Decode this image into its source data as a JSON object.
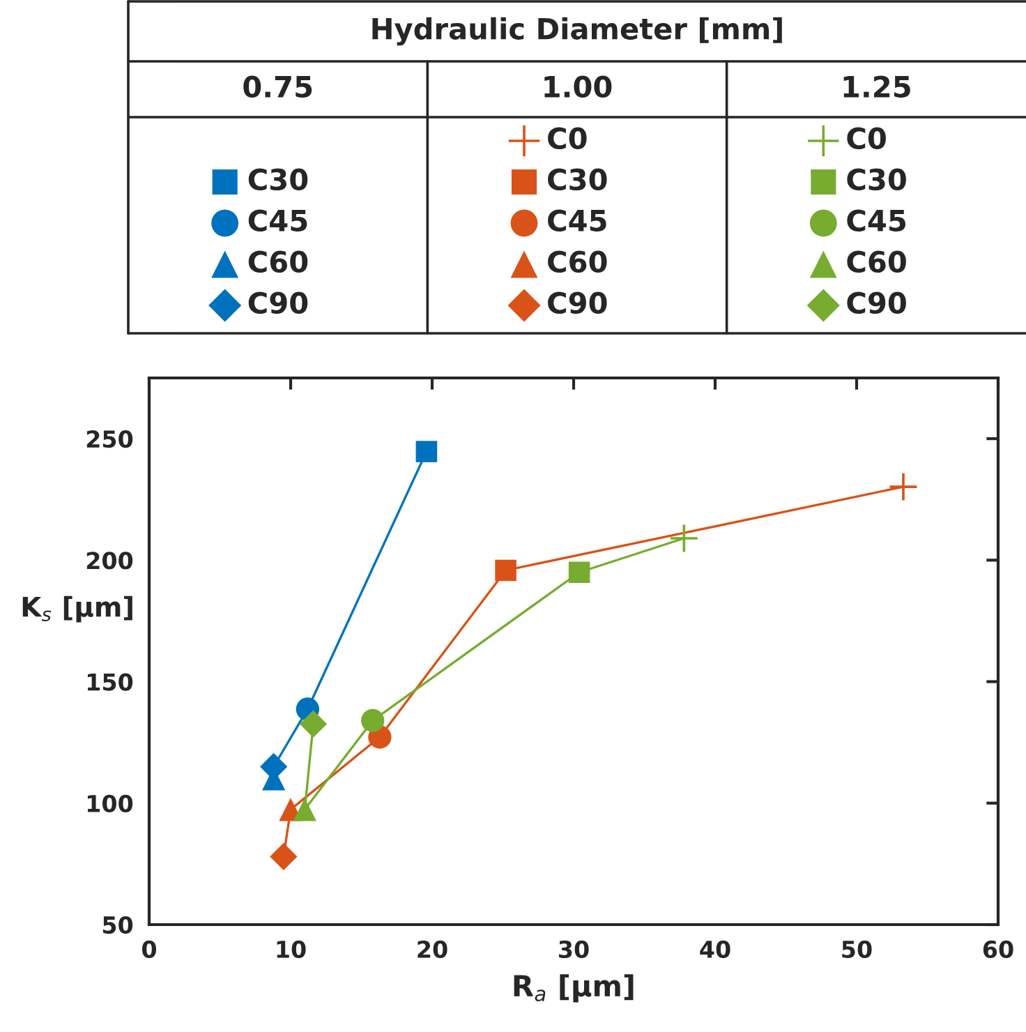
{
  "chart_data": {
    "type": "scatter",
    "legend_title": "Hydraulic Diameter [mm]",
    "legend": "top",
    "annotations": [
      "0.75",
      "1.00",
      "1.25"
    ],
    "xlabel": "R$_{a}$ [µm]",
    "ylabel": "K$_{s}$ [µm]",
    "xlim": [
      0,
      60
    ],
    "xticks": [
      0,
      10,
      20,
      30,
      40,
      50,
      60
    ],
    "ylim": [
      50,
      275
    ],
    "yticks": [
      50,
      100,
      150,
      200,
      250
    ],
    "grid": false,
    "series": [
      {
        "type": "line",
        "color": "#0072bd",
        "marker": "none",
        "x": [
          8.8,
          8.8,
          11.2,
          19.6
        ],
        "values": [
          110,
          115,
          138.7,
          244.7
        ]
      },
      {
        "type": "line",
        "color": "#d95319",
        "marker": "none",
        "x": [
          9.5,
          10.0,
          16.3,
          25.2,
          53.3
        ],
        "values": [
          78,
          97.4,
          127.2,
          195.8,
          230.2
        ]
      },
      {
        "type": "line",
        "color": "#77ac30",
        "marker": "none",
        "x": [
          11.6,
          11.0,
          15.8,
          30.4,
          37.8
        ],
        "values": [
          132.6,
          97.4,
          134,
          195,
          209
        ]
      },
      {
        "name": "C30",
        "color": "#0072bd",
        "marker": "square",
        "x": [
          19.6
        ],
        "values": [
          244.7
        ]
      },
      {
        "name": "C45",
        "color": "#0072bd",
        "marker": "circle",
        "x": [
          11.2
        ],
        "values": [
          138.7
        ]
      },
      {
        "name": "C60",
        "color": "#0072bd",
        "marker": "triangle",
        "x": [
          8.8
        ],
        "values": [
          110
        ]
      },
      {
        "name": "C90",
        "color": "#0072bd",
        "marker": "diamond",
        "x": [
          8.8
        ],
        "values": [
          115
        ]
      },
      {
        "name": "C0",
        "color": "#d95319",
        "marker": "cross",
        "x": [
          53.3
        ],
        "values": [
          230.2
        ]
      },
      {
        "name": "C30",
        "color": "#d95319",
        "marker": "square",
        "x": [
          25.2
        ],
        "values": [
          195.8
        ]
      },
      {
        "name": "C45",
        "color": "#d95319",
        "marker": "circle",
        "x": [
          16.3
        ],
        "values": [
          127.2
        ]
      },
      {
        "name": "C60",
        "color": "#d95319",
        "marker": "triangle",
        "x": [
          10.0
        ],
        "values": [
          97.4
        ]
      },
      {
        "name": "C90",
        "color": "#d95319",
        "marker": "diamond",
        "x": [
          9.5
        ],
        "values": [
          78
        ]
      },
      {
        "name": "C0",
        "color": "#77ac30",
        "marker": "cross",
        "x": [
          37.8
        ],
        "values": [
          209
        ]
      },
      {
        "name": "C30",
        "color": "#77ac30",
        "marker": "square",
        "x": [
          30.4
        ],
        "values": [
          195
        ]
      },
      {
        "name": "C45",
        "color": "#77ac30",
        "marker": "circle",
        "x": [
          15.8
        ],
        "values": [
          134
        ]
      },
      {
        "name": "C60",
        "color": "#77ac30",
        "marker": "triangle",
        "x": [
          11.0
        ],
        "values": [
          97.4
        ]
      },
      {
        "name": "C90",
        "color": "#77ac30",
        "marker": "diamond",
        "x": [
          11.6
        ],
        "values": [
          132.6
        ]
      }
    ]
  }
}
